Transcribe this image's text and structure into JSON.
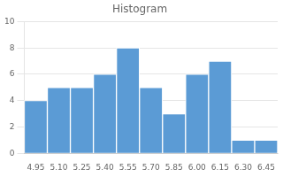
{
  "chart_data": {
    "type": "bar",
    "title": "Histogram",
    "categories": [
      "4.95",
      "5.10",
      "5.25",
      "5.40",
      "5.55",
      "5.70",
      "5.85",
      "6.00",
      "6.15",
      "6.30",
      "6.45"
    ],
    "values": [
      4,
      5,
      5,
      6,
      8,
      5,
      3,
      6,
      7,
      1,
      1
    ],
    "color": "#5B9BD5",
    "ylim": [
      0,
      10
    ],
    "yticks": [
      0,
      2,
      4,
      6,
      8,
      10
    ],
    "grid": true
  }
}
